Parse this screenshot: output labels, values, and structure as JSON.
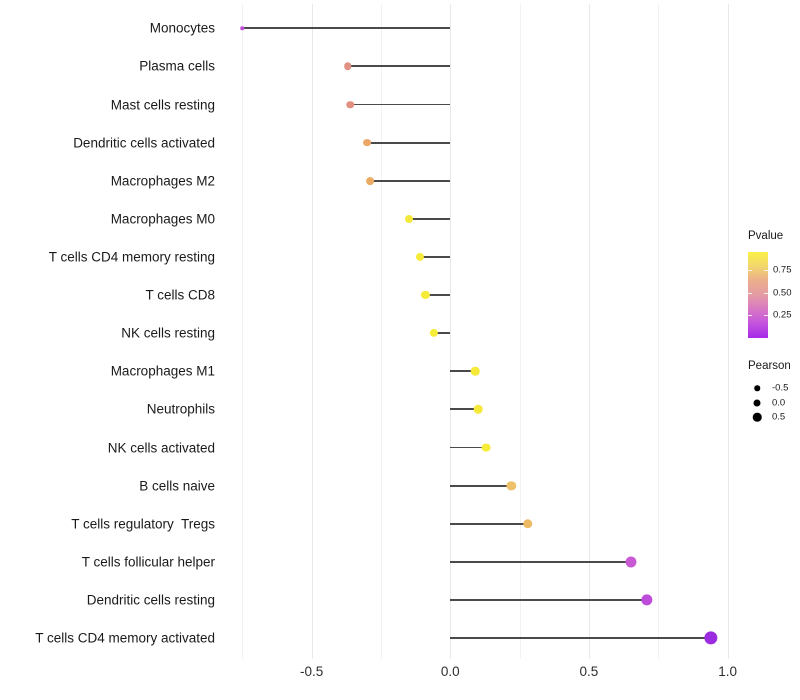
{
  "chart_data": {
    "type": "lollipop",
    "orientation": "horizontal",
    "title": "",
    "xlabel": "",
    "ylabel": "",
    "xlim": [
      -0.8,
      1.05
    ],
    "baseline": 0.0,
    "grid": "vertical-only",
    "x_tick_labels": [
      "-0.5",
      "0.0",
      "0.5",
      "1.0"
    ],
    "x_tick_values": [
      -0.5,
      0.0,
      0.5,
      1.0
    ],
    "x_minor_tick_values": [
      -0.75,
      -0.25,
      0.25,
      0.75
    ],
    "points": [
      {
        "label": "Monocytes",
        "pearson": -0.75,
        "color": "#C14FD8",
        "diameter": 3.5
      },
      {
        "label": "Plasma cells",
        "pearson": -0.37,
        "color": "#E19181",
        "diameter": 7.5
      },
      {
        "label": "Mast cells resting",
        "pearson": -0.36,
        "color": "#E19080",
        "diameter": 7.5
      },
      {
        "label": "Dendritic cells activated",
        "pearson": -0.3,
        "color": "#EBA768",
        "diameter": 7.8
      },
      {
        "label": "Macrophages M2",
        "pearson": -0.29,
        "color": "#ECAB62",
        "diameter": 7.8
      },
      {
        "label": "Macrophages M0",
        "pearson": -0.15,
        "color": "#F4E83C",
        "diameter": 8.0
      },
      {
        "label": "T cells CD4 memory resting",
        "pearson": -0.11,
        "color": "#F5EA3A",
        "diameter": 8.1
      },
      {
        "label": "T cells CD8",
        "pearson": -0.09,
        "color": "#F5EB39",
        "diameter": 8.2
      },
      {
        "label": "NK cells resting",
        "pearson": -0.06,
        "color": "#F6ED38",
        "diameter": 8.3
      },
      {
        "label": "Macrophages M1",
        "pearson": 0.09,
        "color": "#F5EA3A",
        "diameter": 8.5
      },
      {
        "label": "Neutrophils",
        "pearson": 0.1,
        "color": "#F5EA3A",
        "diameter": 8.6
      },
      {
        "label": "NK cells activated",
        "pearson": 0.13,
        "color": "#F6EC38",
        "diameter": 8.8
      },
      {
        "label": "B cells naive",
        "pearson": 0.22,
        "color": "#EDC169",
        "diameter": 9.3
      },
      {
        "label": "T cells regulatory  Tregs",
        "pearson": 0.28,
        "color": "#ECBA63",
        "diameter": 9.5
      },
      {
        "label": "T cells follicular helper",
        "pearson": 0.65,
        "color": "#C85BD3",
        "diameter": 11.0
      },
      {
        "label": "Dendritic cells resting",
        "pearson": 0.71,
        "color": "#BC4CD9",
        "diameter": 11.3
      },
      {
        "label": "T cells CD4 memory activated",
        "pearson": 0.94,
        "color": "#9B2CE0",
        "diameter": 13.3
      }
    ],
    "legend_pvalue": {
      "title": "Pvalue",
      "tick_labels": [
        "0.75",
        "0.50",
        "0.25"
      ],
      "tick_values": [
        0.75,
        0.5,
        0.25
      ],
      "range": [
        0.0,
        0.95
      ],
      "gradient_top_to_bottom": [
        "#FAF046",
        "#F2D66E",
        "#EBAE8C",
        "#E49BA4",
        "#D877C4",
        "#C353DE",
        "#A62BE8"
      ]
    },
    "legend_pearson": {
      "title": "Pearson",
      "items": [
        {
          "label": "-0.5",
          "diameter": 5.5
        },
        {
          "label": "0.0",
          "diameter": 7.0
        },
        {
          "label": "0.5",
          "diameter": 8.5
        }
      ]
    },
    "colors": {
      "segment": "#4a4a4a",
      "grid_major": "#e8e8e8",
      "grid_minor": "#f2f2f2",
      "axis_text": "#2e2e2e",
      "label_text": "#1a1a1a"
    }
  }
}
